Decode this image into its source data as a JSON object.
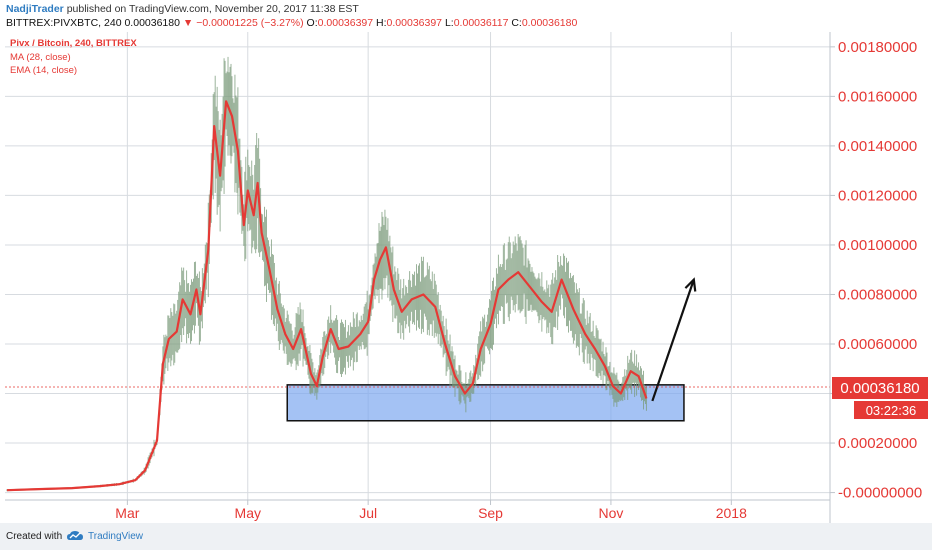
{
  "header": {
    "author": "NadjiTrader",
    "published": " published on TradingView.com, November 20, 2017 11:38 EST",
    "symbol": "BITTREX:PIVXBTC, 240",
    "last": "0.00036180",
    "arrow": "▼",
    "change": "−0.00001225 (−3.27%)",
    "o_label": "O:",
    "o_value": "0.00036397",
    "h_label": "H:",
    "h_value": "0.00036397",
    "l_label": "L:",
    "l_value": "0.00036117",
    "c_label": "C:",
    "c_value": "0.00036180"
  },
  "legend": {
    "title": "Pivx / Bitcoin, 240, BITTREX",
    "ma": "MA (28, close)",
    "ema": "EMA (14, close)"
  },
  "price_label": "0.00036180",
  "countdown_label": "03:22:36",
  "footer": {
    "created": "Created with",
    "brand": "TradingView",
    "logo_icon": "tradingview-cloud-icon"
  },
  "colors": {
    "accent": "#e53935",
    "candles": "#7a9a7a",
    "ma": "#e53935",
    "zone_fill": "#7ea8ef",
    "zone_border": "#111111",
    "grid": "#d7dbe0",
    "axis_bg": "#e53935",
    "tradingview_blue": "#2f7cc1"
  },
  "chart_data": {
    "type": "line",
    "title": "Pivx / Bitcoin, 240, BITTREX",
    "ylim": [
      -3e-05,
      0.00186
    ],
    "y_ticks": [
      "-0.00000000",
      "0.00020000",
      "0.00040000",
      "0.00060000",
      "0.00080000",
      "0.00100000",
      "0.00120000",
      "0.00140000",
      "0.00160000",
      "0.00180000"
    ],
    "y_tick_values": [
      0,
      0.0002,
      0.0004,
      0.0006,
      0.0008,
      0.001,
      0.0012,
      0.0014,
      0.0016,
      0.0018
    ],
    "x_ticks": [
      "Mar",
      "May",
      "Jul",
      "Sep",
      "Nov",
      "2018"
    ],
    "x_tick_dates": [
      "2017-03-01",
      "2017-05-01",
      "2017-07-01",
      "2017-09-01",
      "2017-11-01",
      "2018-01-01"
    ],
    "xlim": [
      "2016-12-29",
      "2018-02-20"
    ],
    "grid": true,
    "legend_position": "top-left",
    "series": [
      {
        "name": "EMA (14, close)",
        "points": [
          [
            "2016-12-30",
            9.5e-06
          ],
          [
            "2017-01-15",
            1.4e-05
          ],
          [
            "2017-02-01",
            1.8e-05
          ],
          [
            "2017-02-15",
            2.6e-05
          ],
          [
            "2017-02-25",
            3.4e-05
          ],
          [
            "2017-03-05",
            5e-05
          ],
          [
            "2017-03-10",
            9e-05
          ],
          [
            "2017-03-16",
            0.00021
          ],
          [
            "2017-03-19",
            0.00052
          ],
          [
            "2017-03-22",
            0.00062
          ],
          [
            "2017-03-26",
            0.00065
          ],
          [
            "2017-03-29",
            0.00078
          ],
          [
            "2017-04-02",
            0.00072
          ],
          [
            "2017-04-05",
            0.00082
          ],
          [
            "2017-04-07",
            0.00072
          ],
          [
            "2017-04-11",
            0.00098
          ],
          [
            "2017-04-14",
            0.00148
          ],
          [
            "2017-04-17",
            0.00128
          ],
          [
            "2017-04-20",
            0.00158
          ],
          [
            "2017-04-23",
            0.00152
          ],
          [
            "2017-04-26",
            0.00138
          ],
          [
            "2017-04-29",
            0.00108
          ],
          [
            "2017-05-01",
            0.00122
          ],
          [
            "2017-05-04",
            0.00112
          ],
          [
            "2017-05-06",
            0.00125
          ],
          [
            "2017-05-08",
            0.00105
          ],
          [
            "2017-05-12",
            0.0009
          ],
          [
            "2017-05-16",
            0.00074
          ],
          [
            "2017-05-20",
            0.00064
          ],
          [
            "2017-05-24",
            0.00058
          ],
          [
            "2017-05-28",
            0.00066
          ],
          [
            "2017-06-02",
            0.00048
          ],
          [
            "2017-06-05",
            0.00043
          ],
          [
            "2017-06-08",
            0.00055
          ],
          [
            "2017-06-12",
            0.00066
          ],
          [
            "2017-06-16",
            0.00058
          ],
          [
            "2017-06-21",
            0.00059
          ],
          [
            "2017-06-27",
            0.00064
          ],
          [
            "2017-07-01",
            0.00069
          ],
          [
            "2017-07-04",
            0.00086
          ],
          [
            "2017-07-07",
            0.00094
          ],
          [
            "2017-07-10",
            0.00099
          ],
          [
            "2017-07-14",
            0.00082
          ],
          [
            "2017-07-18",
            0.00073
          ],
          [
            "2017-07-23",
            0.00078
          ],
          [
            "2017-07-29",
            0.0008
          ],
          [
            "2017-08-04",
            0.00075
          ],
          [
            "2017-08-09",
            0.0006
          ],
          [
            "2017-08-14",
            0.00047
          ],
          [
            "2017-08-19",
            0.0004
          ],
          [
            "2017-08-23",
            0.00044
          ],
          [
            "2017-08-27",
            0.00058
          ],
          [
            "2017-09-01",
            0.00068
          ],
          [
            "2017-09-05",
            0.00082
          ],
          [
            "2017-09-10",
            0.00086
          ],
          [
            "2017-09-15",
            0.00089
          ],
          [
            "2017-09-21",
            0.00083
          ],
          [
            "2017-09-27",
            0.00077
          ],
          [
            "2017-10-02",
            0.00073
          ],
          [
            "2017-10-07",
            0.00086
          ],
          [
            "2017-10-13",
            0.00074
          ],
          [
            "2017-10-19",
            0.00064
          ],
          [
            "2017-10-24",
            0.00058
          ],
          [
            "2017-10-29",
            0.00051
          ],
          [
            "2017-11-02",
            0.00043
          ],
          [
            "2017-11-06",
            0.0004
          ],
          [
            "2017-11-11",
            0.00049
          ],
          [
            "2017-11-15",
            0.00047
          ],
          [
            "2017-11-19",
            0.00038
          ]
        ]
      }
    ],
    "support_zone": {
      "x_start": "2017-05-21",
      "x_end": "2017-12-08",
      "y_low": 0.00029,
      "y_high": 0.000435
    },
    "projection_arrow": {
      "from": [
        "2017-11-22",
        0.00037
      ],
      "to": [
        "2017-12-13",
        0.00086
      ]
    },
    "last_price": 0.0003618
  }
}
